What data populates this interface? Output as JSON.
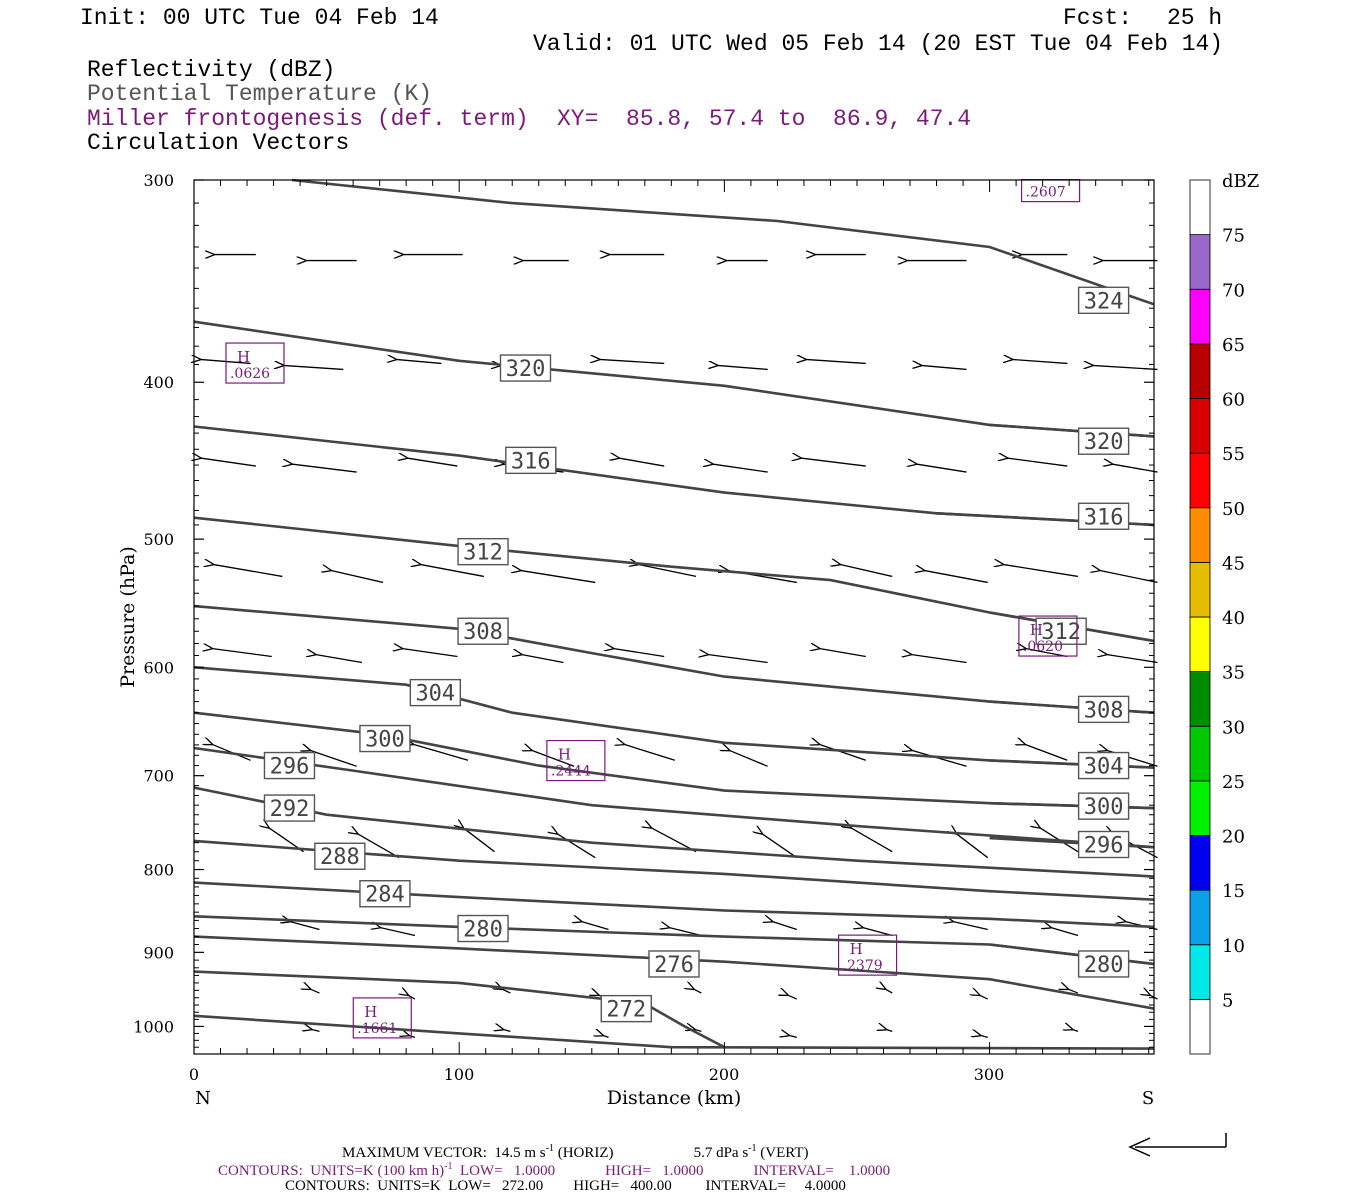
{
  "header": {
    "init": "Init: 00 UTC Tue 04 Feb 14",
    "fcst_label": "Fcst:",
    "fcst_value": "25 h",
    "valid": "Valid: 01 UTC Wed 05 Feb 14 (20 EST Tue 04 Feb 14)",
    "field1": "Reflectivity (dBZ)",
    "field2": "Potential Temperature (K)",
    "field3": "Miller frontogenesis (def. term)",
    "xy": "XY=  85.8, 57.4 to  86.9, 47.4",
    "field4": "Circulation Vectors"
  },
  "colors": {
    "theta": "#444444",
    "frontogenesis": "#7a1a7a",
    "text": "#000000"
  },
  "chart_data": {
    "type": "line",
    "xlabel": "Distance (km)",
    "ylabel": "Pressure (hPa)",
    "x_end_labels": {
      "left": "N",
      "right": "S"
    },
    "xlim": [
      0,
      362
    ],
    "ylim": [
      1040,
      300
    ],
    "y_scale": "log-pressure",
    "x_ticks": [
      0,
      100,
      200,
      300
    ],
    "y_ticks": [
      300,
      400,
      500,
      600,
      700,
      800,
      900,
      1000
    ],
    "grid": false,
    "colorbar": {
      "title": "dBZ",
      "labels": [
        "5",
        "10",
        "15",
        "20",
        "25",
        "30",
        "35",
        "40",
        "45",
        "50",
        "55",
        "60",
        "65",
        "70",
        "75"
      ],
      "colors": [
        "#ffffff",
        "#00e8e8",
        "#0a9fe8",
        "#0000f0",
        "#00f000",
        "#00c800",
        "#008c00",
        "#ffff00",
        "#e6bc00",
        "#ff8c00",
        "#ff0000",
        "#d80000",
        "#b80000",
        "#ff00ff",
        "#9966cc",
        "#ffffff"
      ]
    },
    "theta_series": [
      {
        "name": "324",
        "label_pos": [
          343,
          356
        ],
        "points": [
          [
            37,
            300
          ],
          [
            120,
            310
          ],
          [
            220,
            318
          ],
          [
            300,
            330
          ],
          [
            362,
            358
          ]
        ]
      },
      {
        "name": "320",
        "label_pos": [
          125,
          392
        ],
        "points": [
          [
            0,
            367
          ],
          [
            100,
            388
          ],
          [
            200,
            402
          ],
          [
            300,
            425
          ],
          [
            362,
            432
          ]
        ]
      },
      {
        "name": "320",
        "label_pos": [
          343,
          435
        ],
        "points": [
          [
            300,
            425
          ],
          [
            362,
            432
          ]
        ]
      },
      {
        "name": "316",
        "label_pos": [
          127,
          447
        ],
        "points": [
          [
            0,
            426
          ],
          [
            100,
            444
          ],
          [
            200,
            468
          ],
          [
            280,
            482
          ],
          [
            362,
            490
          ]
        ]
      },
      {
        "name": "316",
        "label_pos": [
          343,
          484
        ],
        "points": [
          [
            280,
            482
          ],
          [
            362,
            490
          ]
        ]
      },
      {
        "name": "312",
        "label_pos": [
          109,
          509
        ],
        "points": [
          [
            0,
            485
          ],
          [
            100,
            505
          ],
          [
            180,
            520
          ],
          [
            240,
            530
          ],
          [
            300,
            555
          ],
          [
            362,
            578
          ]
        ]
      },
      {
        "name": "312",
        "label_pos": [
          327,
          570
        ],
        "points": [
          [
            300,
            555
          ],
          [
            362,
            578
          ]
        ]
      },
      {
        "name": "308",
        "label_pos": [
          109,
          570
        ],
        "points": [
          [
            0,
            550
          ],
          [
            100,
            568
          ],
          [
            150,
            588
          ],
          [
            200,
            608
          ],
          [
            300,
            630
          ],
          [
            362,
            640
          ]
        ]
      },
      {
        "name": "308",
        "label_pos": [
          343,
          637
        ],
        "points": [
          [
            300,
            630
          ],
          [
            362,
            640
          ]
        ]
      },
      {
        "name": "304",
        "label_pos": [
          91,
          622
        ],
        "points": [
          [
            0,
            600
          ],
          [
            80,
            615
          ],
          [
            120,
            640
          ],
          [
            200,
            668
          ],
          [
            300,
            685
          ],
          [
            362,
            692
          ]
        ]
      },
      {
        "name": "304",
        "label_pos": [
          343,
          690
        ],
        "points": [
          [
            300,
            685
          ],
          [
            362,
            692
          ]
        ]
      },
      {
        "name": "300",
        "label_pos": [
          72,
          664
        ],
        "points": [
          [
            0,
            640
          ],
          [
            70,
            660
          ],
          [
            130,
            690
          ],
          [
            200,
            715
          ],
          [
            300,
            728
          ],
          [
            362,
            733
          ]
        ]
      },
      {
        "name": "300",
        "label_pos": [
          343,
          731
        ],
        "points": [
          [
            300,
            728
          ],
          [
            362,
            733
          ]
        ]
      },
      {
        "name": "296",
        "label_pos": [
          36,
          690
        ],
        "points": [
          [
            0,
            673
          ],
          [
            60,
            695
          ],
          [
            150,
            730
          ],
          [
            250,
            752
          ],
          [
            362,
            775
          ]
        ]
      },
      {
        "name": "296",
        "label_pos": [
          343,
          772
        ],
        "points": [
          [
            300,
            765
          ],
          [
            362,
            775
          ]
        ]
      },
      {
        "name": "292",
        "label_pos": [
          36,
          733
        ],
        "points": [
          [
            0,
            712
          ],
          [
            50,
            740
          ],
          [
            150,
            770
          ],
          [
            250,
            790
          ],
          [
            362,
            808
          ]
        ]
      },
      {
        "name": "288",
        "label_pos": [
          55,
          785
        ],
        "points": [
          [
            0,
            768
          ],
          [
            100,
            790
          ],
          [
            200,
            805
          ],
          [
            300,
            825
          ],
          [
            362,
            835
          ]
        ]
      },
      {
        "name": "284",
        "label_pos": [
          72,
          828
        ],
        "points": [
          [
            0,
            815
          ],
          [
            100,
            832
          ],
          [
            200,
            848
          ],
          [
            300,
            858
          ],
          [
            362,
            868
          ]
        ]
      },
      {
        "name": "280",
        "label_pos": [
          109,
          870
        ],
        "points": [
          [
            0,
            855
          ],
          [
            100,
            868
          ],
          [
            200,
            880
          ],
          [
            300,
            890
          ],
          [
            362,
            915
          ]
        ]
      },
      {
        "name": "280",
        "label_pos": [
          343,
          915
        ],
        "points": [
          [
            300,
            890
          ],
          [
            362,
            915
          ]
        ]
      },
      {
        "name": "276",
        "label_pos": [
          181,
          915
        ],
        "points": [
          [
            0,
            880
          ],
          [
            100,
            895
          ],
          [
            200,
            912
          ],
          [
            300,
            935
          ],
          [
            362,
            975
          ]
        ]
      },
      {
        "name": "272",
        "label_pos": [
          163,
          975
        ],
        "points": [
          [
            0,
            925
          ],
          [
            100,
            940
          ],
          [
            170,
            968
          ],
          [
            185,
            1000
          ],
          [
            200,
            1030
          ]
        ]
      },
      {
        "name": "",
        "label_pos": null,
        "points": [
          [
            0,
            985
          ],
          [
            100,
            1010
          ],
          [
            180,
            1030
          ],
          [
            362,
            1032
          ]
        ]
      }
    ],
    "frontogenesis_maxima": [
      {
        "label": "H",
        "value": ".0626",
        "at": [
          23,
          392
        ]
      },
      {
        "label": "H",
        "value": ".2444",
        "at": [
          144,
          690
        ]
      },
      {
        "label": "H",
        "value": ".0620",
        "at": [
          322,
          578
        ]
      },
      {
        "label": "H",
        "value": ".2379",
        "at": [
          254,
          910
        ]
      },
      {
        "label": "H",
        "value": ".1661",
        "at": [
          71,
          995
        ]
      },
      {
        "label": "",
        "value": ".2607",
        "at": [
          323,
          305
        ]
      }
    ]
  },
  "footer": {
    "line1_a": "MAXIMUM VECTOR:  14.5 m s",
    "line1_b": "-1",
    "line1_c": " (HORIZ)",
    "line1_d": "5.7 dPa s",
    "line1_e": "-1",
    "line1_f": " (VERT)",
    "line2_a": "CONTOURS:  UNITS=K (100 km h)",
    "line2_b": "-1",
    "line2_c": "  LOW=   1.0000",
    "line2_d": "HIGH=   1.0000",
    "line2_e": "INTERVAL=    1.0000",
    "line3": "CONTOURS:  UNITS=K  LOW=   272.00        HIGH=   400.00         INTERVAL=     4.0000"
  }
}
